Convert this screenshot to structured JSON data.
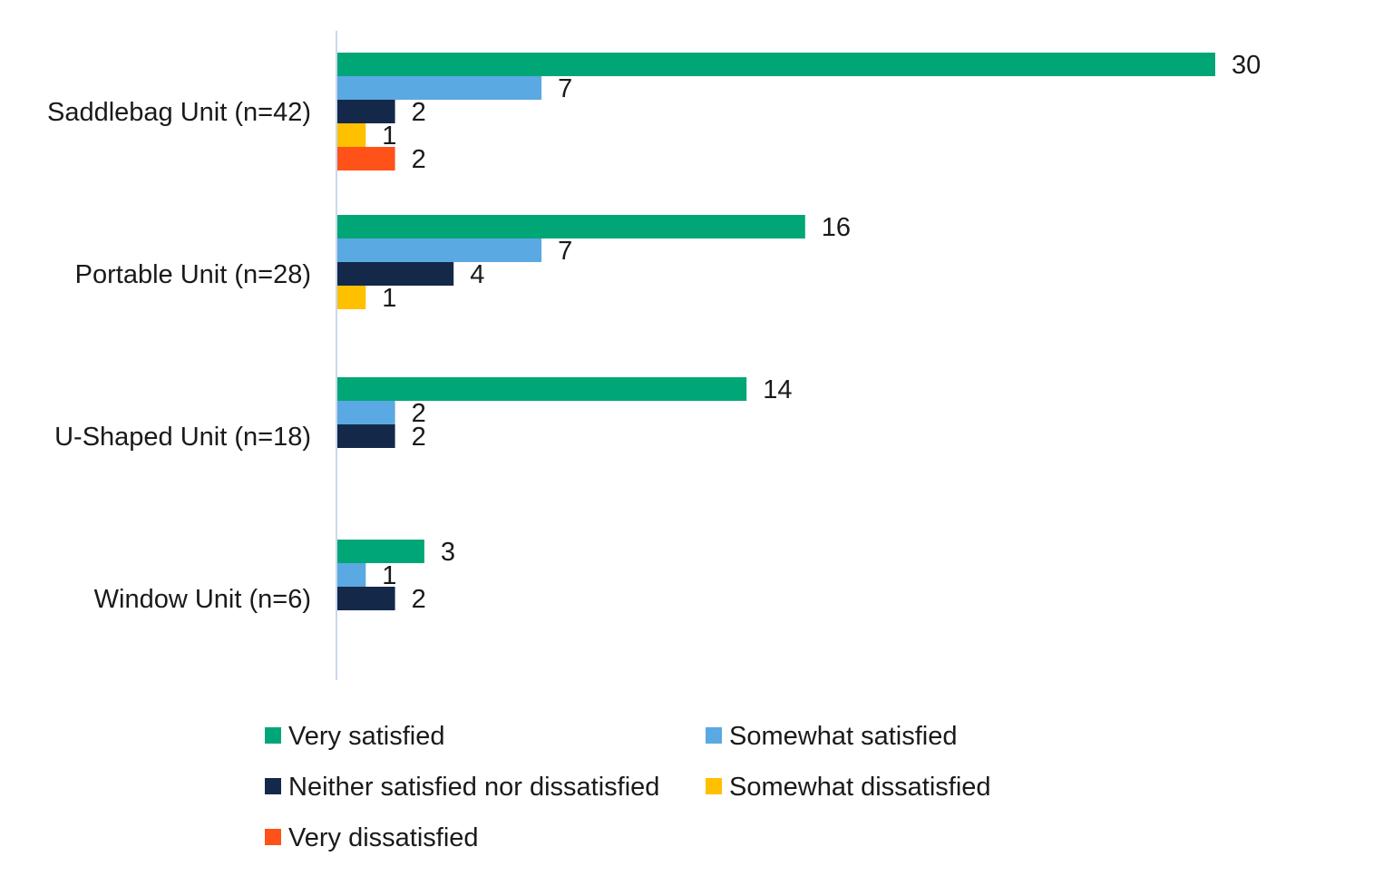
{
  "chart_data": {
    "type": "bar",
    "orientation": "horizontal",
    "title": "",
    "xlabel": "",
    "ylabel": "",
    "xlim": [
      0,
      30
    ],
    "grid": false,
    "legend_position": "bottom",
    "categories": [
      "Saddlebag Unit (n=42)",
      "Portable Unit (n=28)",
      "U-Shaped Unit (n=18)",
      "Window Unit (n=6)"
    ],
    "series": [
      {
        "name": "Very satisfied",
        "color": "#00A676",
        "values": [
          30,
          16,
          14,
          3
        ]
      },
      {
        "name": "Somewhat satisfied",
        "color": "#5AA9E2",
        "values": [
          7,
          7,
          2,
          1
        ]
      },
      {
        "name": "Neither satisfied nor dissatisfied",
        "color": "#14284A",
        "values": [
          2,
          4,
          2,
          2
        ]
      },
      {
        "name": "Somewhat dissatisfied",
        "color": "#FFC000",
        "values": [
          1,
          1,
          null,
          null
        ]
      },
      {
        "name": "Very dissatisfied",
        "color": "#FF5219",
        "values": [
          2,
          null,
          null,
          null
        ]
      }
    ],
    "axis_color": "#C9D9EE"
  }
}
